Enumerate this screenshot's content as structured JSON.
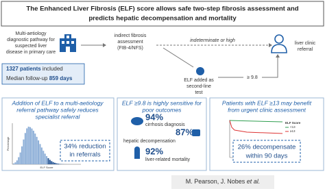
{
  "header": {
    "title": [
      "The Enhanced Liver Fibrosis (ELF) score allows safe two-step fibrosis assessment and",
      "predicts hepatic decompensation and mortality"
    ]
  },
  "pathway": {
    "start": [
      "Multi-aetiology",
      "diagnostic pathway for",
      "suspected liver",
      "disease in primary care"
    ],
    "first_test": [
      "indirect fibrosis",
      "assessment",
      "(FIB-4/NFS)"
    ],
    "first_result": "indeterminate or high",
    "second_test": [
      "ELF added as",
      "second-line",
      "test"
    ],
    "threshold": "≥ 9.8",
    "end": [
      "liver clinic",
      "referral"
    ]
  },
  "cohort": {
    "patients": "1327 patients",
    "patients_rest": " included",
    "followup": "Median follow-up ",
    "followup_value": "859 days"
  },
  "panels": [
    {
      "title": [
        "Addition of ELF to a multi-aetiology",
        "referral pathway safely reduces",
        "specialist referral"
      ],
      "chart_x": "ELF Score",
      "chart_y": "Percentage",
      "callout": [
        "34% reduction",
        "in referrals"
      ]
    },
    {
      "title": [
        "ELF ≥9.8 is highly sensitive for",
        "poor outcomes"
      ],
      "stats": [
        {
          "value": "94%",
          "label": "cirrhosis diagnosis"
        },
        {
          "value": "87%",
          "label": "hepatic decompensation"
        },
        {
          "value": "92%",
          "label": "liver-related mortality"
        }
      ]
    },
    {
      "title": [
        "Patients with ELF ≥13 may benefit",
        "from urgent clinic assessment"
      ],
      "legend_title": "ELF Score",
      "legend": [
        "<13",
        "≥13"
      ],
      "callout": [
        "26% decompensate",
        "within 90 days"
      ]
    }
  ],
  "footer": {
    "authors": "M. Pearson, J. Nobes ",
    "etal": "et al."
  }
}
